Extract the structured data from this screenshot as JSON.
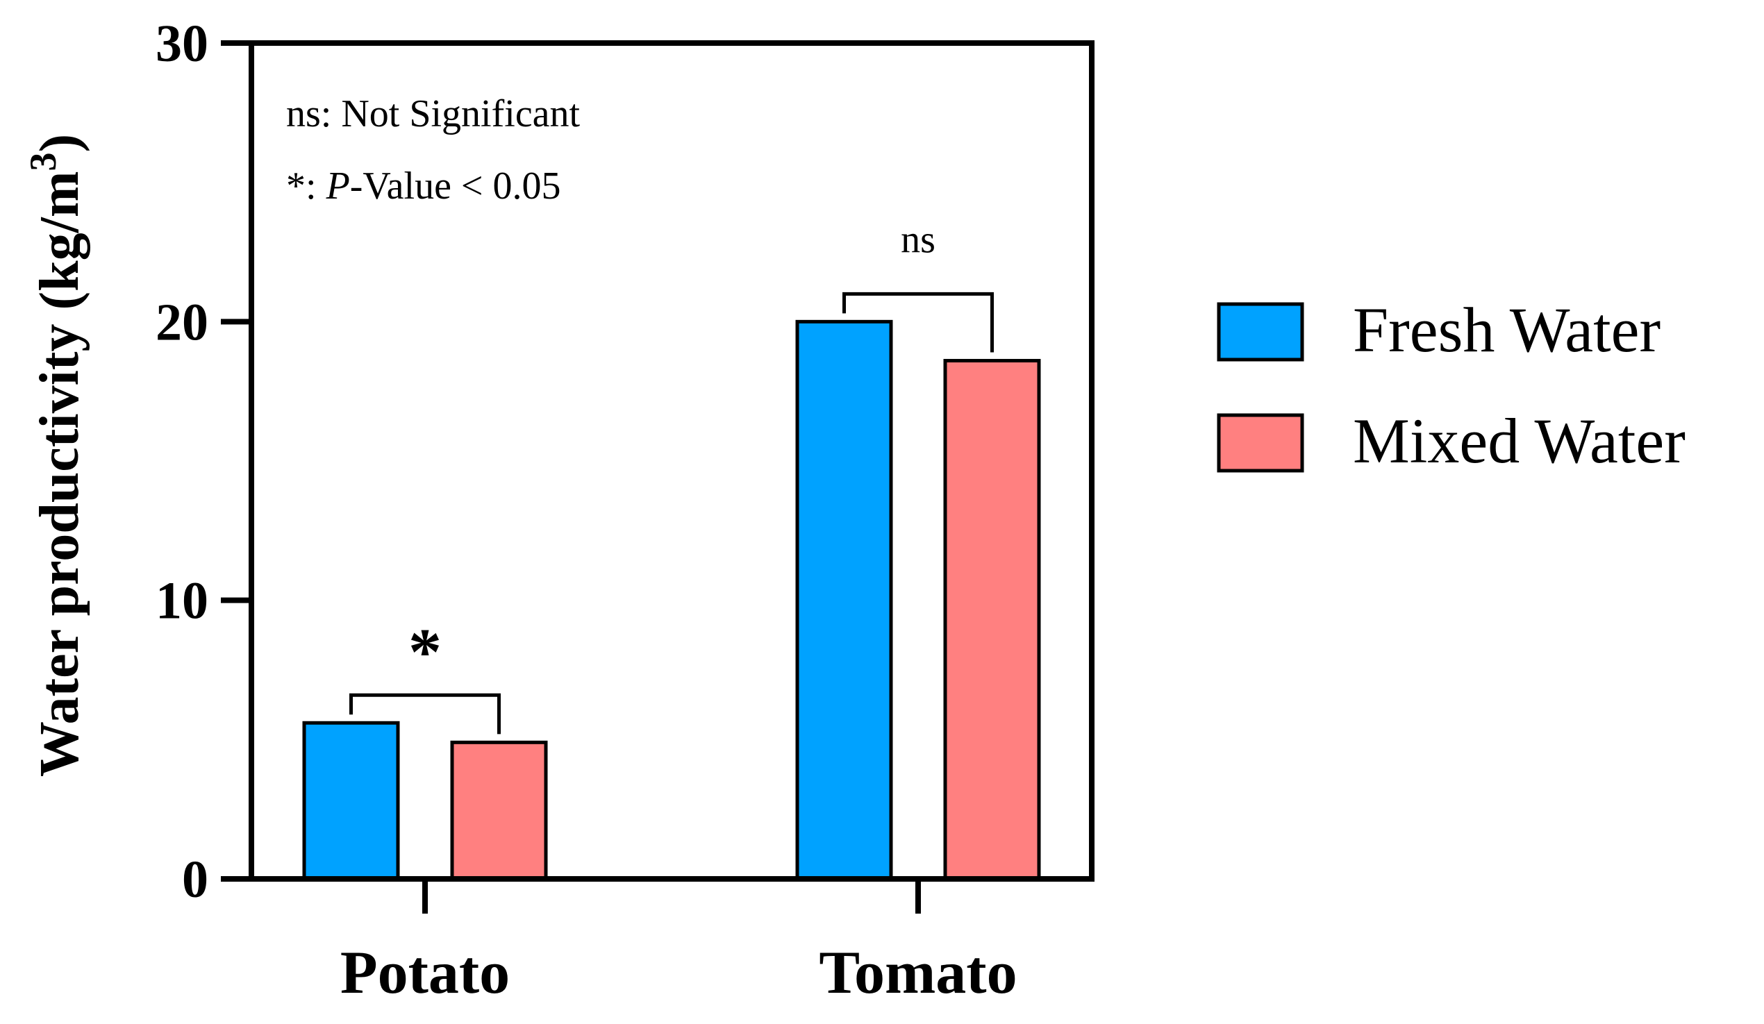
{
  "chart_data": {
    "type": "bar",
    "title": "",
    "xlabel": "",
    "ylabel": {
      "main": "Water productivity (kg/m",
      "superscript": "3",
      "close": ")"
    },
    "categories": [
      "Potato",
      "Tomato"
    ],
    "ylim": [
      0,
      30
    ],
    "yticks": [
      "0",
      "10",
      "20",
      "30"
    ],
    "series": [
      {
        "name": "Fresh Water",
        "color": "#00A2FF",
        "values": [
          5.6,
          20.0
        ]
      },
      {
        "name": "Mixed Water",
        "color": "#FF8080",
        "values": [
          4.9,
          18.6
        ]
      }
    ],
    "significance": [
      {
        "category": "Potato",
        "label": "*"
      },
      {
        "category": "Tomato",
        "label": "ns"
      }
    ],
    "annotations": {
      "ns_note": "ns: Not Significant",
      "p_prefix": "*: ",
      "p_italic": "P",
      "p_rest": "-Value < 0.05"
    },
    "legend_position": "right",
    "grid": false
  }
}
